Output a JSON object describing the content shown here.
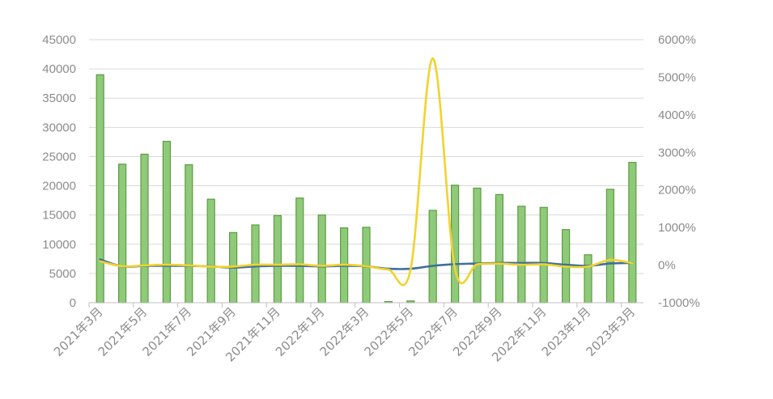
{
  "chart_data": {
    "type": "bar",
    "title": "",
    "xlabel": "",
    "ylabel": "",
    "categories": [
      "2021年3月",
      "2021年4月",
      "2021年5月",
      "2021年6月",
      "2021年7月",
      "2021年8月",
      "2021年9月",
      "2021年10月",
      "2021年11月",
      "2021年12月",
      "2022年1月",
      "2022年2月",
      "2022年3月",
      "2022年4月",
      "2022年5月",
      "2022年6月",
      "2022年7月",
      "2022年8月",
      "2022年9月",
      "2022年10月",
      "2022年11月",
      "2022年12月",
      "2023年1月",
      "2023年2月",
      "2023年3月"
    ],
    "x_tick_labels": [
      "2021年3月",
      "2021年5月",
      "2021年7月",
      "2021年9月",
      "2021年11月",
      "2022年1月",
      "2022年3月",
      "2022年5月",
      "2022年7月",
      "2022年9月",
      "2022年11月",
      "2023年1月",
      "2023年3月"
    ],
    "ylim": [
      0,
      45000
    ],
    "y_ticks": [
      "0",
      "5000",
      "10000",
      "15000",
      "20000",
      "25000",
      "30000",
      "35000",
      "40000",
      "45000"
    ],
    "y2lim": [
      -1000,
      6000
    ],
    "y2_ticks": [
      "-1000%",
      "0%",
      "1000%",
      "2000%",
      "3000%",
      "4000%",
      "5000%",
      "6000%"
    ],
    "grid": true,
    "series": [
      {
        "type": "bar",
        "axis": "left",
        "color": "#8fc97a",
        "stroke": "#5c9e3e",
        "values": [
          39000,
          23700,
          25400,
          27600,
          23600,
          17700,
          12000,
          13300,
          14900,
          17900,
          15000,
          12800,
          12900,
          200,
          300,
          15800,
          20100,
          19600,
          18500,
          16500,
          16300,
          12500,
          8200,
          19400,
          24000
        ]
      },
      {
        "type": "line",
        "axis": "left",
        "color": "#3e6f9e",
        "values": [
          7400,
          6200,
          6300,
          6300,
          6300,
          6200,
          6000,
          6200,
          6300,
          6300,
          6200,
          6300,
          6200,
          5800,
          5800,
          6300,
          6600,
          6700,
          6800,
          6800,
          6800,
          6500,
          6300,
          6700,
          6800
        ]
      },
      {
        "type": "line",
        "axis": "right",
        "color": "#f2d22e",
        "values": [
          100,
          -30,
          -10,
          10,
          -10,
          -40,
          -40,
          10,
          10,
          20,
          -20,
          10,
          -30,
          -120,
          -110,
          5500,
          -100,
          20,
          40,
          10,
          20,
          -40,
          -40,
          140,
          50
        ]
      }
    ]
  }
}
